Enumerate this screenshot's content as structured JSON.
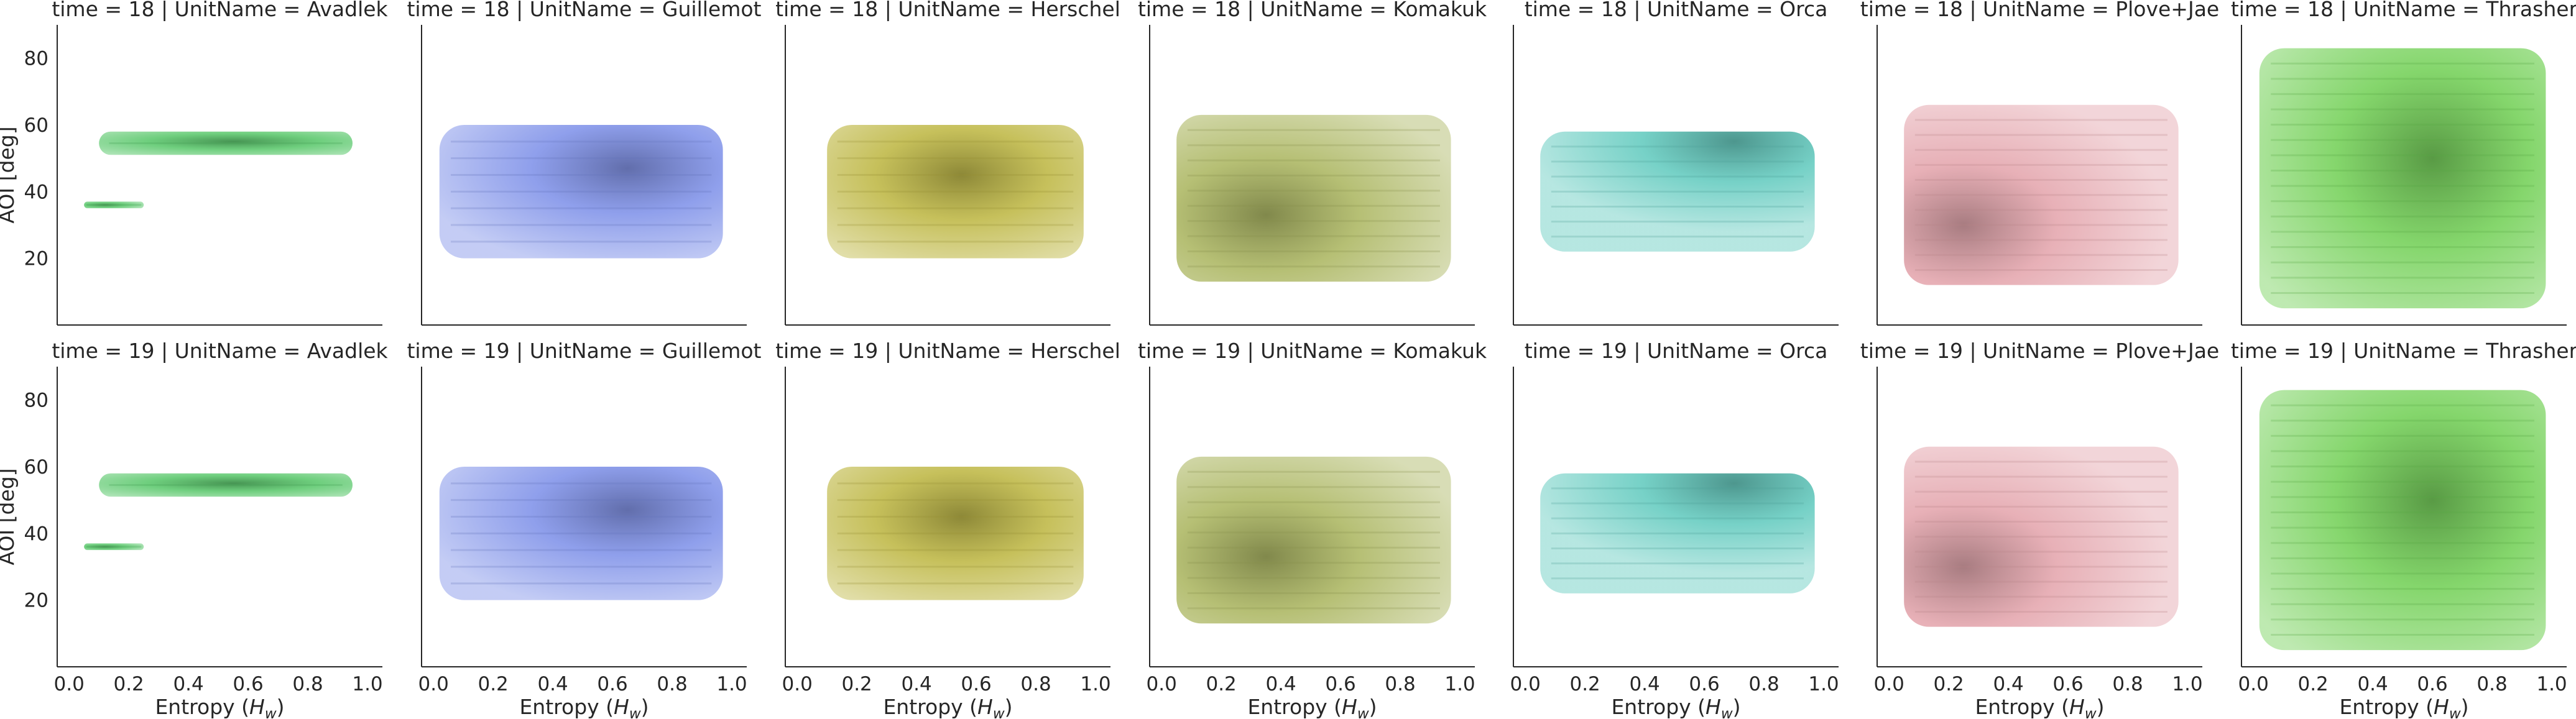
{
  "chart_data": {
    "type": "scatter",
    "layout": {
      "rows": 2,
      "cols": 7,
      "sharex": true,
      "sharey": true
    },
    "xlabel": "Entropy (",
    "xlabel_math": "H",
    "xlabel_sub": "w",
    "xlabel_close": ")",
    "ylabel": "AOI [deg]",
    "xlim": [
      -0.04,
      1.05
    ],
    "ylim": [
      0,
      90
    ],
    "xticks": [
      0.0,
      0.2,
      0.4,
      0.6,
      0.8,
      1.0
    ],
    "xtick_labels": [
      "0.0",
      "0.2",
      "0.4",
      "0.6",
      "0.8",
      "1.0"
    ],
    "yticks": [
      20,
      40,
      60,
      80
    ],
    "ytick_labels": [
      "20",
      "40",
      "60",
      "80"
    ],
    "grid": false,
    "legend": "none",
    "row_var": "time",
    "col_var": "UnitName",
    "rows": [
      18,
      19
    ],
    "units": [
      {
        "name": "Avadlek",
        "color": "#55c667",
        "clusters": [
          {
            "xmin": 0.1,
            "xmax": 0.95,
            "ymin": 51,
            "ymax": 58,
            "dense": [
              0.55,
              55
            ]
          },
          {
            "xmin": 0.05,
            "xmax": 0.25,
            "ymin": 35,
            "ymax": 37,
            "dense": [
              0.12,
              36
            ]
          }
        ]
      },
      {
        "name": "Guillemot",
        "color": "#7b8ee8",
        "clusters": [
          {
            "xmin": 0.02,
            "xmax": 0.97,
            "ymin": 20,
            "ymax": 60,
            "dense": [
              0.65,
              47
            ]
          }
        ]
      },
      {
        "name": "Herschel",
        "color": "#bcb53e",
        "clusters": [
          {
            "xmin": 0.1,
            "xmax": 0.96,
            "ymin": 20,
            "ymax": 60,
            "dense": [
              0.55,
              45
            ]
          }
        ]
      },
      {
        "name": "Komakuk",
        "color": "#a9b45c",
        "clusters": [
          {
            "xmin": 0.05,
            "xmax": 0.97,
            "ymin": 13,
            "ymax": 63,
            "dense": [
              0.35,
              33
            ]
          }
        ]
      },
      {
        "name": "Orca",
        "color": "#5ec9bd",
        "clusters": [
          {
            "xmin": 0.05,
            "xmax": 0.97,
            "ymin": 22,
            "ymax": 58,
            "dense": [
              0.7,
              55
            ]
          }
        ]
      },
      {
        "name": "Plove+Jae",
        "color": "#e3a2aa",
        "clusters": [
          {
            "xmin": 0.05,
            "xmax": 0.97,
            "ymin": 12,
            "ymax": 66,
            "dense": [
              0.25,
              30
            ]
          }
        ]
      },
      {
        "name": "Thrasher",
        "color": "#6fcf52",
        "clusters": [
          {
            "xmin": 0.02,
            "xmax": 0.98,
            "ymin": 5,
            "ymax": 83,
            "dense": [
              0.6,
              50
            ]
          }
        ]
      }
    ]
  }
}
